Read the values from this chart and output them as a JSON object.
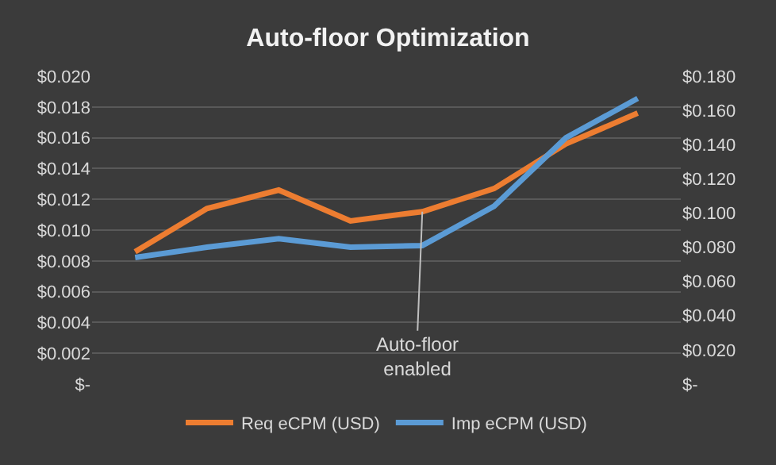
{
  "chart_data": {
    "type": "line",
    "title": "Auto-floor Optimization",
    "categories": [
      null,
      null,
      null,
      null,
      null,
      null,
      null,
      null
    ],
    "series": [
      {
        "name": "Req eCPM (USD)",
        "color": "#ed7d31",
        "values": [
          0.0086,
          0.0114,
          0.0126,
          0.0106,
          0.0112,
          0.0127,
          0.0156,
          0.0176
        ]
      },
      {
        "name": "Imp eCPM (USD)",
        "color": "#5b9bd5",
        "axis": "y2",
        "values": [
          0.074,
          0.08,
          0.085,
          0.08,
          0.081,
          0.104,
          0.144,
          0.167
        ]
      }
    ],
    "ylim": [
      0,
      0.02
    ],
    "yticks": [
      {
        "value": 0,
        "label": "$-"
      },
      {
        "value": 0.002,
        "label": "$0.002"
      },
      {
        "value": 0.004,
        "label": "$0.004"
      },
      {
        "value": 0.006,
        "label": "$0.006"
      },
      {
        "value": 0.008,
        "label": "$0.008"
      },
      {
        "value": 0.01,
        "label": "$0.010"
      },
      {
        "value": 0.012,
        "label": "$0.012"
      },
      {
        "value": 0.014,
        "label": "$0.014"
      },
      {
        "value": 0.016,
        "label": "$0.016"
      },
      {
        "value": 0.018,
        "label": "$0.018"
      },
      {
        "value": 0.02,
        "label": "$0.020"
      }
    ],
    "y2lim": [
      0,
      0.18
    ],
    "y2ticks": [
      {
        "value": 0,
        "label": "$-"
      },
      {
        "value": 0.02,
        "label": "$0.020"
      },
      {
        "value": 0.04,
        "label": "$0.040"
      },
      {
        "value": 0.06,
        "label": "$0.060"
      },
      {
        "value": 0.08,
        "label": "$0.080"
      },
      {
        "value": 0.1,
        "label": "$0.100"
      },
      {
        "value": 0.12,
        "label": "$0.120"
      },
      {
        "value": 0.14,
        "label": "$0.140"
      },
      {
        "value": 0.16,
        "label": "$0.160"
      },
      {
        "value": 0.18,
        "label": "$0.180"
      }
    ],
    "annotations": [
      {
        "text": "Auto-floor\nenabled",
        "y": 0.0112
      }
    ],
    "grid": "y",
    "legend": "bottom",
    "marker": "none",
    "line_style": "solid",
    "tick_labels": "y"
  }
}
